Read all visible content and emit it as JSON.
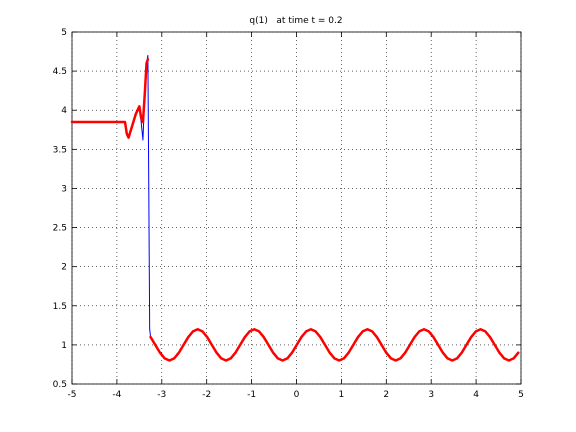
{
  "chart_data": {
    "type": "line",
    "title": "q(1)   at time t = 0.2",
    "x": [
      -5,
      -3.82,
      -3.78,
      -3.74,
      -3.66,
      -3.58,
      -3.5,
      -3.46,
      -3.42,
      -3.38,
      -3.34,
      -3.31,
      -3.29,
      -3.27,
      -3.25,
      -3.145,
      -3.04,
      -2.935,
      -2.83,
      -2.725,
      -2.62,
      -2.515,
      -2.41,
      -2.305,
      -2.2,
      -2.095,
      -1.99,
      -1.885,
      -1.78,
      -1.675,
      -1.57,
      -1.465,
      -1.36,
      -1.255,
      -1.15,
      -1.045,
      -0.94,
      -0.835,
      -0.73,
      -0.625,
      -0.52,
      -0.415,
      -0.31,
      -0.205,
      -0.1,
      0.005,
      0.11,
      0.215,
      0.32,
      0.425,
      0.53,
      0.635,
      0.74,
      0.845,
      0.95,
      1.055,
      1.16,
      1.265,
      1.37,
      1.475,
      1.58,
      1.685,
      1.79,
      1.895,
      2.0,
      2.105,
      2.21,
      2.315,
      2.42,
      2.525,
      2.63,
      2.735,
      2.84,
      2.945,
      3.05,
      3.155,
      3.26,
      3.365,
      3.47,
      3.575,
      3.68,
      3.785,
      3.89,
      3.995,
      4.1,
      4.205,
      4.31,
      4.415,
      4.52,
      4.625,
      4.73,
      4.835,
      4.94
    ],
    "series": [
      {
        "color": "#0000ff",
        "values": [
          3.85,
          3.85,
          3.7,
          3.65,
          3.8,
          3.95,
          4.05,
          3.85,
          3.62,
          4.2,
          4.6,
          4.7,
          3.0,
          1.2,
          1.1,
          1,
          0.9,
          0.827,
          0.8,
          0.827,
          0.9,
          1,
          1.1,
          1.173,
          1.2,
          1.173,
          1.1,
          1,
          0.9,
          0.827,
          0.8,
          0.827,
          0.9,
          1,
          1.1,
          1.173,
          1.2,
          1.173,
          1.1,
          1,
          0.9,
          0.827,
          0.8,
          0.827,
          0.9,
          1,
          1.1,
          1.173,
          1.2,
          1.173,
          1.1,
          1,
          0.9,
          0.827,
          0.8,
          0.827,
          0.9,
          1,
          1.1,
          1.173,
          1.2,
          1.173,
          1.1,
          1,
          0.9,
          0.827,
          0.8,
          0.827,
          0.9,
          1,
          1.1,
          1.173,
          1.2,
          1.173,
          1.1,
          1,
          0.9,
          0.827,
          0.8,
          0.827,
          0.9,
          1,
          1.1,
          1.173,
          1.2,
          1.173,
          1.1,
          1,
          0.9,
          0.827,
          0.8,
          0.827,
          0.9
        ]
      },
      {
        "color": "#ff0000",
        "values": [
          3.85,
          3.85,
          3.7,
          3.65,
          3.8,
          3.95,
          4.05,
          3.9,
          3.85,
          4.2,
          4.6,
          4.65,
          null,
          null,
          1.1,
          1,
          0.9,
          0.827,
          0.8,
          0.827,
          0.9,
          1,
          1.1,
          1.173,
          1.2,
          1.173,
          1.1,
          1,
          0.9,
          0.827,
          0.8,
          0.827,
          0.9,
          1,
          1.1,
          1.173,
          1.2,
          1.173,
          1.1,
          1,
          0.9,
          0.827,
          0.8,
          0.827,
          0.9,
          1,
          1.1,
          1.173,
          1.2,
          1.173,
          1.1,
          1,
          0.9,
          0.827,
          0.8,
          0.827,
          0.9,
          1,
          1.1,
          1.173,
          1.2,
          1.173,
          1.1,
          1,
          0.9,
          0.827,
          0.8,
          0.827,
          0.9,
          1,
          1.1,
          1.173,
          1.2,
          1.173,
          1.1,
          1,
          0.9,
          0.827,
          0.8,
          0.827,
          0.9,
          1,
          1.1,
          1.173,
          1.2,
          1.173,
          1.1,
          1,
          0.9,
          0.827,
          0.8,
          0.827,
          0.9
        ]
      }
    ],
    "xlim": [
      -5,
      5
    ],
    "xticks": [
      -5,
      -4,
      -3,
      -2,
      -1,
      0,
      1,
      2,
      3,
      4,
      5
    ],
    "ylim": [
      0.5,
      5
    ],
    "yticks": [
      0.5,
      1,
      1.5,
      2,
      2.5,
      3,
      3.5,
      4,
      4.5,
      5
    ],
    "grid": true
  }
}
